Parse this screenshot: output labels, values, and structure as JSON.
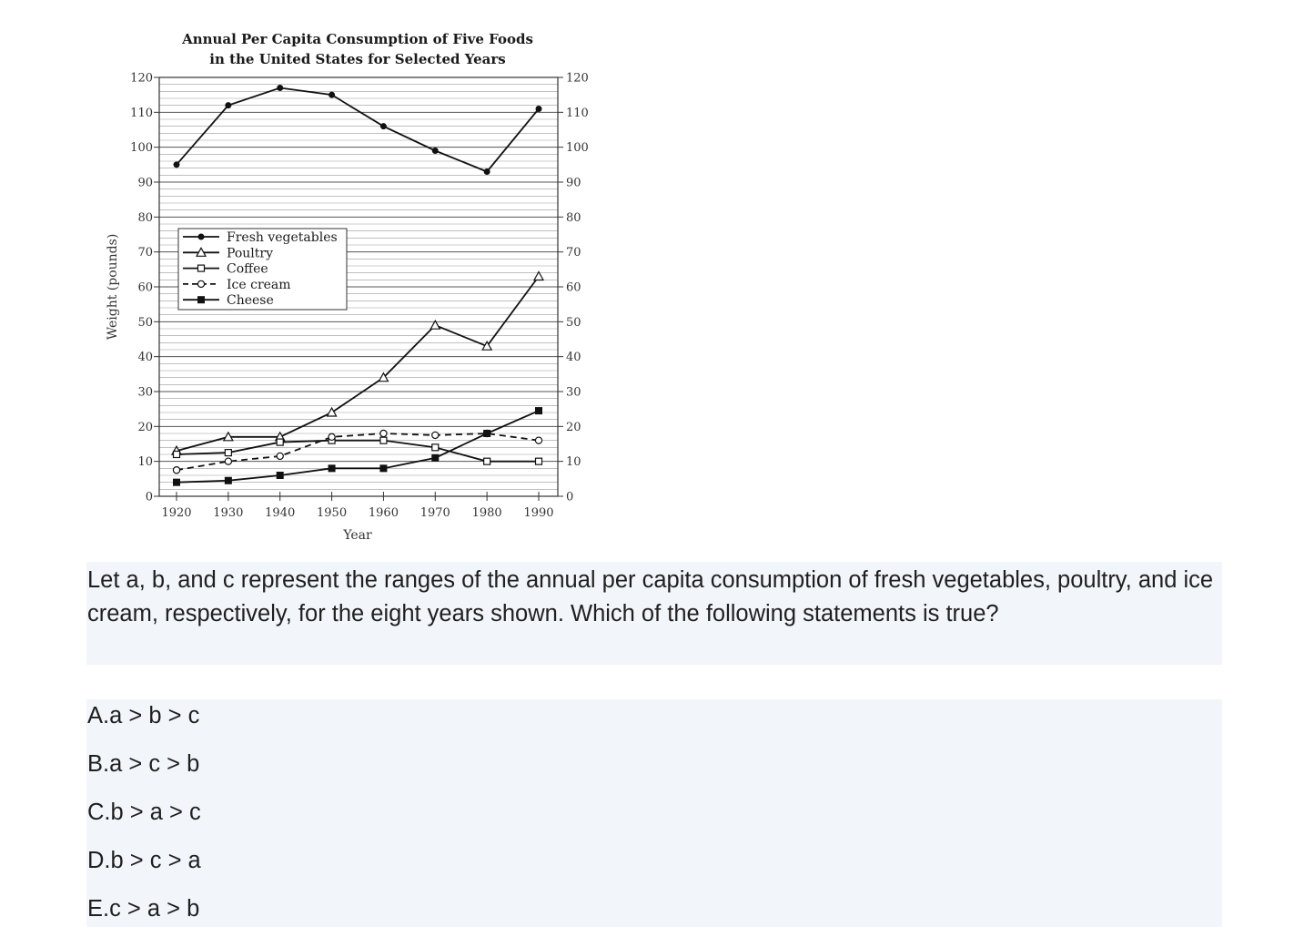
{
  "chart_data": {
    "type": "line",
    "title_lines": [
      "Annual Per Capita Consumption of Five Foods",
      "in the United States for Selected Years"
    ],
    "xlabel": "Year",
    "ylabel": "Weight (pounds)",
    "x": [
      1920,
      1930,
      1940,
      1950,
      1960,
      1970,
      1980,
      1990
    ],
    "x_tick_labels": [
      "1920",
      "1930",
      "1940",
      "1950",
      "1960",
      "1970",
      "1980",
      "1990"
    ],
    "ylim": [
      0,
      120
    ],
    "y_ticks": [
      0,
      10,
      20,
      30,
      40,
      50,
      60,
      70,
      80,
      90,
      100,
      110,
      120
    ],
    "y_tick_labels": [
      "0",
      "10",
      "20",
      "30",
      "40",
      "50",
      "60",
      "70",
      "80",
      "90",
      "100",
      "110",
      "120"
    ],
    "minor_grid_step": 2,
    "grid": true,
    "legend_placement": "upper-left",
    "series": [
      {
        "name": "Fresh vegetables",
        "marker": "filled-circle",
        "dash": "solid",
        "values": [
          95,
          112,
          117,
          115,
          106,
          99,
          93,
          111
        ]
      },
      {
        "name": "Poultry",
        "marker": "open-triangle",
        "dash": "solid",
        "values": [
          13,
          17,
          17,
          24,
          34,
          49,
          43,
          63
        ]
      },
      {
        "name": "Coffee",
        "marker": "open-square",
        "dash": "solid",
        "values": [
          12,
          12.5,
          15.5,
          16,
          16,
          14,
          10,
          10
        ]
      },
      {
        "name": "Ice cream",
        "marker": "open-circle",
        "dash": "dashed",
        "values": [
          7.5,
          10,
          11.5,
          17,
          18,
          17.5,
          18,
          16
        ]
      },
      {
        "name": "Cheese",
        "marker": "filled-square",
        "dash": "solid",
        "values": [
          4,
          4.5,
          6,
          8,
          8,
          11,
          18,
          24.5
        ]
      }
    ]
  },
  "question": {
    "text": "Let a, b, and c represent the ranges of the annual per capita consumption of fresh vegetables, poultry, and ice cream, respectively, for the eight years shown. Which of the following statements is true?"
  },
  "choices": [
    {
      "letter": "A.",
      "text": "a > b > c"
    },
    {
      "letter": "B.",
      "text": "a > c > b"
    },
    {
      "letter": "C.",
      "text": "b > a > c"
    },
    {
      "letter": "D.",
      "text": "b > c > a"
    },
    {
      "letter": "E.",
      "text": "c > a > b"
    }
  ]
}
